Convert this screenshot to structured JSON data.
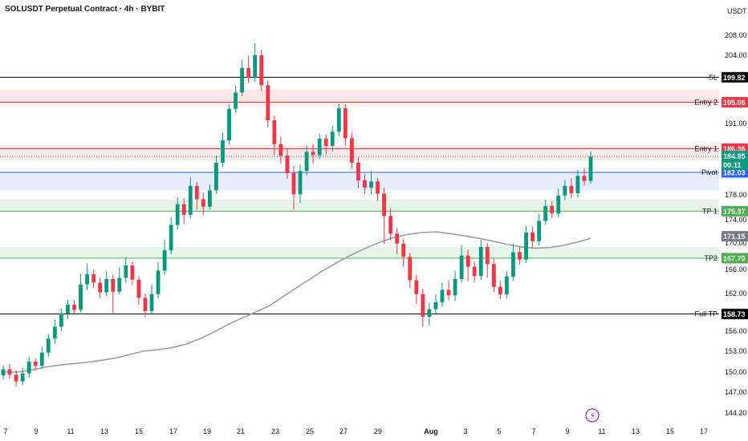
{
  "header": {
    "title": "SOLUSDT Perpetual Contract · 4h · BYBIT",
    "currency": "USDT"
  },
  "colors": {
    "up": "#089981",
    "down": "#f23645",
    "ma": "#9e9e9e",
    "black_line": "#000000",
    "entry": "#f23645",
    "pivot": "#2962ff",
    "tp": "#4caf50",
    "ma_tag": "#787b86"
  },
  "chart_data": {
    "type": "candlestick",
    "y_axis_ticks": [
      "208.00",
      "204.00",
      "191.00",
      "178.00",
      "174.00",
      "170.00",
      "166.00",
      "162.00",
      "156.00",
      "153.00",
      "150.00",
      "147.00",
      "144.20"
    ],
    "x_axis_ticks": [
      "7",
      "9",
      "11",
      "13",
      "15",
      "17",
      "19",
      "21",
      "23",
      "25",
      "27",
      "29",
      "Aug",
      "3",
      "5",
      "7",
      "9",
      "11",
      "13",
      "15",
      "17"
    ],
    "levels": [
      {
        "name": "SL",
        "value": "199.82",
        "color": "#000000"
      },
      {
        "name": "Entry 2",
        "value": "195.06",
        "color": "#f23645"
      },
      {
        "name": "Entry 1",
        "value": "186.36",
        "color": "#f23645"
      },
      {
        "name": "Pivot",
        "value": "182.03",
        "color": "#2962ff"
      },
      {
        "name": "TP 1",
        "value": "175.37",
        "color": "#4caf50"
      },
      {
        "name": "TP2",
        "value": "167.70",
        "color": "#4caf50"
      },
      {
        "name": "Full TP",
        "value": "158.73",
        "color": "#000000"
      }
    ],
    "last_price": {
      "value": "184.95",
      "countdown": "00:11"
    },
    "ma_value": "171.15",
    "ma_series": [
      150.0,
      150.0,
      150.3,
      150.7,
      151.0,
      151.2,
      151.4,
      151.7,
      152.0,
      152.5,
      153.0,
      153.2,
      153.5,
      154.0,
      154.8,
      155.8,
      157.0,
      158.0,
      159.0,
      160.0,
      161.5,
      163.0,
      164.5,
      166.0,
      167.2,
      168.3,
      169.3,
      170.2,
      171.0,
      171.5,
      171.8,
      171.9,
      171.6,
      171.2,
      170.8,
      170.3,
      169.8,
      169.4,
      169.2,
      169.3,
      169.6,
      170.1,
      170.8
    ],
    "candles": [
      [
        149.5,
        150.4,
        148.9,
        151.0
      ],
      [
        150.4,
        149.6,
        149.0,
        151.2
      ],
      [
        149.6,
        148.6,
        147.8,
        150.3
      ],
      [
        148.6,
        149.8,
        148.0,
        150.6
      ],
      [
        149.8,
        151.5,
        149.2,
        152.2
      ],
      [
        151.5,
        150.9,
        150.2,
        152.0
      ],
      [
        150.9,
        152.8,
        150.5,
        153.7
      ],
      [
        152.8,
        154.9,
        152.2,
        155.6
      ],
      [
        154.9,
        156.7,
        154.1,
        157.8
      ],
      [
        156.7,
        158.8,
        156.0,
        159.6
      ],
      [
        158.8,
        160.2,
        157.9,
        161.0
      ],
      [
        160.2,
        159.4,
        158.6,
        160.9
      ],
      [
        159.4,
        163.5,
        159.0,
        165.2
      ],
      [
        163.5,
        165.2,
        162.6,
        166.9
      ],
      [
        165.2,
        163.8,
        162.9,
        166.0
      ],
      [
        163.8,
        162.2,
        161.2,
        164.6
      ],
      [
        162.2,
        164.4,
        161.6,
        165.7
      ],
      [
        164.4,
        162.3,
        158.8,
        165.1
      ],
      [
        162.3,
        164.6,
        161.9,
        166.3
      ],
      [
        164.6,
        166.6,
        163.8,
        167.8
      ],
      [
        166.6,
        164.3,
        163.4,
        167.2
      ],
      [
        164.3,
        161.3,
        160.2,
        164.9
      ],
      [
        161.3,
        159.2,
        158.2,
        162.0
      ],
      [
        159.2,
        161.9,
        158.6,
        163.5
      ],
      [
        161.9,
        165.8,
        161.2,
        167.1
      ],
      [
        165.8,
        168.9,
        165.1,
        170.6
      ],
      [
        168.9,
        173.1,
        168.3,
        174.4
      ],
      [
        173.1,
        176.5,
        172.3,
        177.6
      ],
      [
        176.5,
        174.8,
        173.2,
        177.5
      ],
      [
        174.8,
        179.6,
        174.2,
        181.1
      ],
      [
        179.6,
        177.3,
        175.6,
        180.3
      ],
      [
        177.3,
        176.1,
        174.8,
        178.4
      ],
      [
        176.1,
        178.8,
        175.6,
        179.9
      ],
      [
        178.8,
        183.8,
        178.3,
        185.1
      ],
      [
        183.8,
        187.9,
        183.0,
        189.3
      ],
      [
        187.9,
        193.8,
        187.1,
        194.6
      ],
      [
        193.8,
        196.9,
        193.0,
        198.2
      ],
      [
        196.9,
        201.6,
        196.2,
        203.1
      ],
      [
        201.6,
        199.7,
        198.8,
        203.8
      ],
      [
        199.7,
        204.0,
        199.0,
        206.4
      ],
      [
        204.0,
        198.3,
        197.2,
        205.1
      ],
      [
        198.3,
        191.6,
        190.3,
        199.2
      ],
      [
        191.6,
        187.2,
        185.2,
        192.5
      ],
      [
        187.2,
        185.1,
        183.7,
        188.6
      ],
      [
        185.1,
        181.9,
        180.9,
        186.3
      ],
      [
        181.9,
        178.1,
        175.6,
        183.2
      ],
      [
        178.1,
        182.3,
        176.7,
        183.4
      ],
      [
        182.3,
        185.8,
        181.5,
        186.9
      ],
      [
        185.8,
        185.2,
        183.6,
        187.3
      ],
      [
        185.2,
        188.2,
        184.5,
        189.1
      ],
      [
        188.2,
        186.9,
        185.3,
        189.0
      ],
      [
        186.9,
        189.5,
        185.9,
        190.6
      ],
      [
        189.5,
        193.9,
        188.6,
        194.8
      ],
      [
        193.9,
        188.3,
        186.9,
        194.7
      ],
      [
        188.3,
        183.8,
        182.6,
        189.4
      ],
      [
        183.8,
        180.6,
        179.2,
        184.8
      ],
      [
        180.6,
        179.3,
        178.2,
        181.7
      ],
      [
        179.3,
        180.4,
        178.0,
        182.3
      ],
      [
        180.4,
        178.2,
        177.0,
        181.0
      ],
      [
        178.2,
        174.6,
        169.8,
        179.3
      ],
      [
        174.6,
        171.6,
        170.5,
        175.8
      ],
      [
        171.6,
        169.9,
        168.3,
        172.6
      ],
      [
        169.9,
        167.9,
        166.4,
        170.7
      ],
      [
        167.9,
        164.2,
        162.9,
        168.5
      ],
      [
        164.2,
        161.9,
        160.4,
        165.1
      ],
      [
        161.9,
        158.3,
        156.7,
        162.8
      ],
      [
        158.3,
        159.5,
        156.9,
        160.5
      ],
      [
        159.5,
        160.6,
        158.8,
        161.9
      ],
      [
        160.6,
        162.6,
        159.9,
        163.8
      ],
      [
        162.6,
        161.7,
        160.9,
        164.2
      ],
      [
        161.7,
        164.4,
        160.8,
        165.7
      ],
      [
        164.4,
        168.1,
        163.8,
        169.7
      ],
      [
        168.1,
        166.4,
        164.0,
        169.0
      ],
      [
        166.4,
        164.9,
        163.8,
        167.2
      ],
      [
        164.9,
        169.4,
        164.2,
        170.5
      ],
      [
        169.4,
        166.8,
        164.6,
        170.0
      ],
      [
        166.8,
        163.1,
        162.2,
        167.6
      ],
      [
        163.1,
        161.9,
        161.1,
        164.2
      ],
      [
        161.9,
        164.8,
        161.2,
        165.7
      ],
      [
        164.8,
        168.6,
        164.1,
        169.9
      ],
      [
        168.6,
        167.5,
        166.7,
        169.5
      ],
      [
        167.5,
        171.8,
        167.0,
        172.9
      ],
      [
        171.8,
        170.3,
        169.2,
        172.8
      ],
      [
        170.3,
        173.8,
        169.6,
        175.0
      ],
      [
        173.8,
        176.2,
        173.1,
        177.2
      ],
      [
        176.2,
        175.0,
        174.2,
        177.0
      ],
      [
        175.0,
        177.9,
        174.3,
        179.1
      ],
      [
        177.9,
        179.6,
        177.1,
        180.7
      ],
      [
        179.6,
        178.3,
        177.4,
        181.0
      ],
      [
        178.3,
        181.4,
        177.6,
        182.5
      ],
      [
        181.4,
        180.5,
        179.7,
        182.8
      ],
      [
        180.5,
        184.95,
        180.0,
        185.9
      ]
    ]
  },
  "watermark": "⚡"
}
